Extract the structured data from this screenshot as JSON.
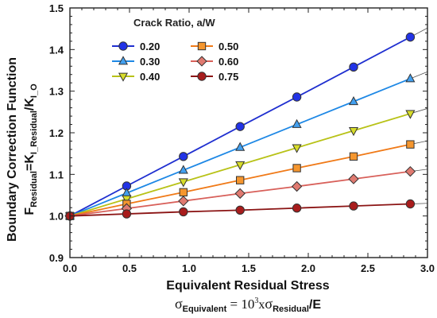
{
  "chart_data": {
    "type": "line",
    "ylabel_line1": "Boundary Correction Function",
    "ylabel_line2": {
      "F": "F",
      "sub1": "Residual",
      "eq": "=K",
      "sub2": "I_Residual",
      "slash": "/K",
      "sub3": "I_O"
    },
    "xlabel": "Equivalent Residual Stress",
    "xformula": {
      "sigma1": "σ",
      "sub1": "Equivalent",
      "eq": " = 10",
      "sup": "3",
      "x": "x",
      "sigma2": "σ",
      "sub2": "Residual",
      "tail": "/E"
    },
    "legend_title": "Crack Ratio, a/W",
    "xlim": [
      0.0,
      3.0
    ],
    "ylim": [
      0.9,
      1.5
    ],
    "xticks": [
      "0.0",
      "0.5",
      "1.0",
      "1.5",
      "2.0",
      "2.5",
      "3.0"
    ],
    "yticks": [
      "0.9",
      "1.0",
      "1.1",
      "1.2",
      "1.3",
      "1.4",
      "1.5"
    ],
    "x": [
      0.0,
      0.476,
      0.952,
      1.428,
      1.904,
      2.38,
      2.856
    ],
    "series": [
      {
        "name": "0.20",
        "marker": "circle",
        "color": "#1f2fd0",
        "fill": "#2233e6",
        "values": [
          1.0,
          1.072,
          1.143,
          1.215,
          1.286,
          1.358,
          1.43
        ]
      },
      {
        "name": "0.30",
        "marker": "triangle-up",
        "color": "#1e88e5",
        "fill": "#42a0f0",
        "values": [
          1.0,
          1.055,
          1.11,
          1.165,
          1.22,
          1.275,
          1.33
        ]
      },
      {
        "name": "0.40",
        "marker": "triangle-down",
        "color": "#b8c217",
        "fill": "#d7dc2a",
        "values": [
          1.0,
          1.041,
          1.082,
          1.123,
          1.164,
          1.205,
          1.246
        ]
      },
      {
        "name": "0.50",
        "marker": "square",
        "color": "#f07a18",
        "fill": "#f5962e",
        "values": [
          1.0,
          1.029,
          1.057,
          1.086,
          1.115,
          1.143,
          1.172
        ]
      },
      {
        "name": "0.60",
        "marker": "diamond",
        "color": "#d8605a",
        "fill": "#e07a70",
        "values": [
          1.0,
          1.018,
          1.036,
          1.054,
          1.071,
          1.089,
          1.107
        ]
      },
      {
        "name": "0.75",
        "marker": "circle",
        "color": "#8b1414",
        "fill": "#a81c1c",
        "values": [
          1.0,
          1.005,
          1.01,
          1.014,
          1.019,
          1.024,
          1.029
        ]
      }
    ],
    "grid": false,
    "legend_position": "top-left"
  }
}
